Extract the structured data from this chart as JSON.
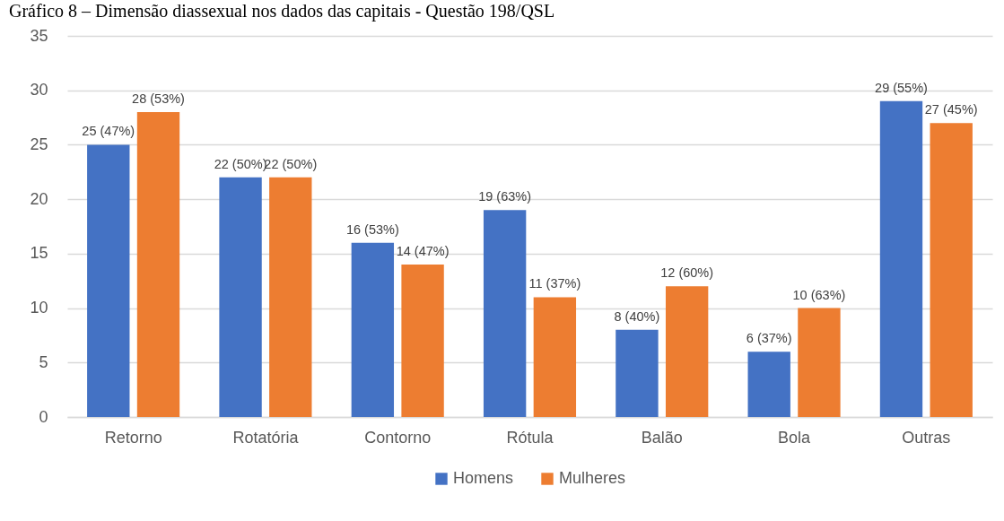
{
  "chart_data": {
    "type": "bar",
    "title": "Gráfico 8 – Dimensão diassexual nos dados das capitais - Questão 198/QSL",
    "categories": [
      "Retorno",
      "Rotatória",
      "Contorno",
      "Rótula",
      "Balão",
      "Bola",
      "Outras"
    ],
    "series": [
      {
        "name": "Homens",
        "color": "#4472c4",
        "values": [
          25,
          22,
          16,
          19,
          8,
          6,
          29
        ],
        "value_labels": [
          "25 (47%)",
          "22 (50%)",
          "16 (53%)",
          "19 (63%)",
          "8 (40%)",
          "6 (37%)",
          "29 (55%)"
        ]
      },
      {
        "name": "Mulheres",
        "color": "#ed7d31",
        "values": [
          28,
          22,
          14,
          11,
          12,
          10,
          27
        ],
        "value_labels": [
          "28 (53%)",
          "22 (50%)",
          "14 (47%)",
          "11 (37%)",
          "12 (60%)",
          "10 (63%)",
          "27 (45%)"
        ]
      }
    ],
    "ylim": [
      0,
      35
    ],
    "yticks": [
      0,
      5,
      10,
      15,
      20,
      25,
      30,
      35
    ],
    "grid": "y",
    "legend": "bottom"
  }
}
